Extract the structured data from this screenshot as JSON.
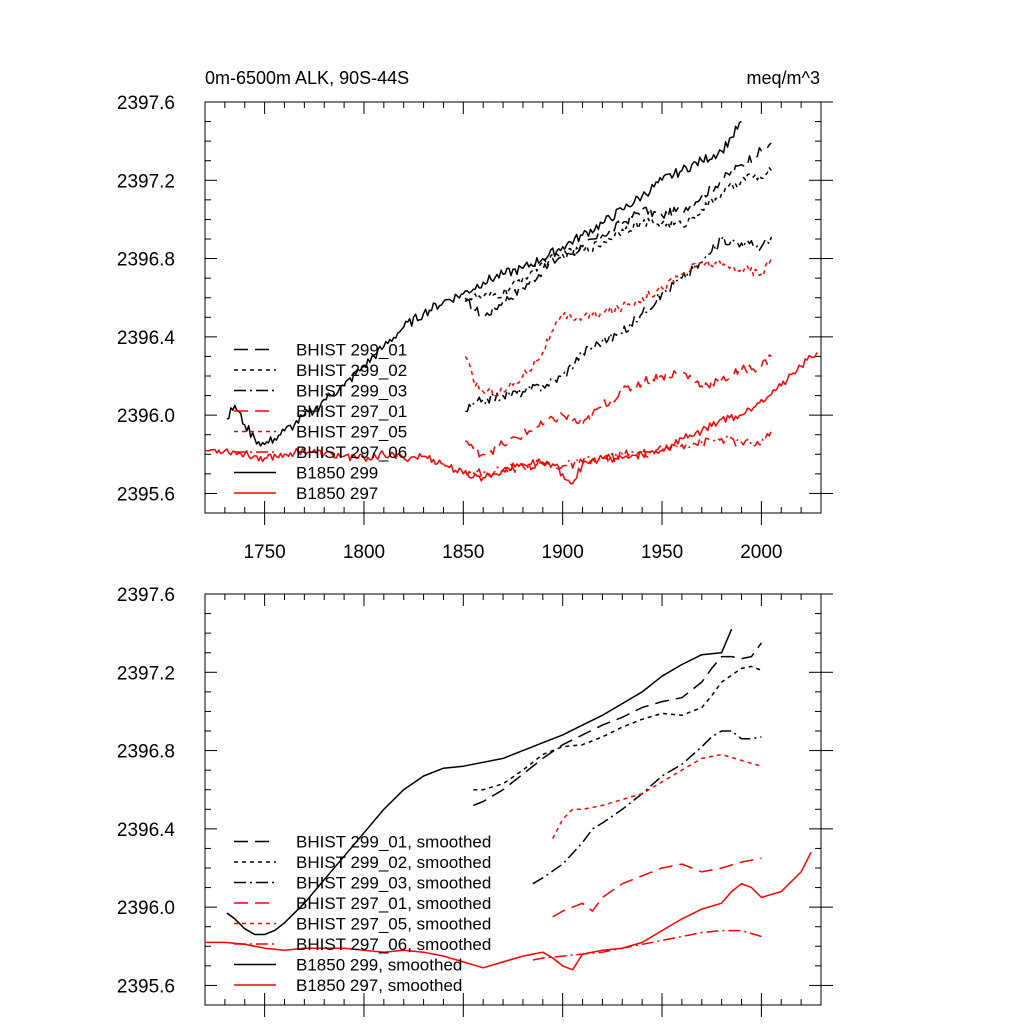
{
  "header": {
    "title": "0m-6500m ALK, 90S-44S",
    "units": "meq/m^3"
  },
  "colors": {
    "black": "#000000",
    "red": "#ff0000"
  },
  "chart_data": [
    {
      "type": "line",
      "title": "0m-6500m ALK, 90S-44S",
      "xlim": [
        1720,
        2030
      ],
      "ylim": [
        2395.5,
        2397.6
      ],
      "x_ticks": [
        1750,
        1800,
        1850,
        1900,
        1950,
        2000
      ],
      "x_tick_labels": [
        "1750",
        "1800",
        "1850",
        "1900",
        "1950",
        "2000"
      ],
      "y_ticks": [
        2395.6,
        2396.0,
        2396.4,
        2396.8,
        2397.2,
        2397.6
      ],
      "y_tick_labels": [
        "2395.6",
        "2396.0",
        "2396.4",
        "2396.8",
        "2397.2",
        "2397.6"
      ],
      "legend_position": "bottom-left",
      "series": [
        {
          "name": "BHIST 299_01",
          "color": "#000000",
          "dash": "longdash",
          "noise": 0.025,
          "x": [
            1851,
            1855,
            1860,
            1870,
            1880,
            1890,
            1900,
            1910,
            1920,
            1930,
            1940,
            1950,
            1960,
            1970,
            1980,
            1990,
            2000,
            2005
          ],
          "y": [
            2396.58,
            2396.55,
            2396.5,
            2396.58,
            2396.65,
            2396.74,
            2396.82,
            2396.86,
            2396.92,
            2396.98,
            2397.05,
            2397.02,
            2397.05,
            2397.12,
            2397.2,
            2397.28,
            2397.35,
            2397.39
          ]
        },
        {
          "name": "BHIST 299_02",
          "color": "#000000",
          "dash": "shortdash",
          "noise": 0.025,
          "x": [
            1851,
            1860,
            1870,
            1880,
            1890,
            1900,
            1910,
            1920,
            1930,
            1940,
            1950,
            1960,
            1970,
            1980,
            1990,
            1995,
            2000,
            2005
          ],
          "y": [
            2396.6,
            2396.6,
            2396.62,
            2396.7,
            2396.78,
            2396.82,
            2396.84,
            2396.88,
            2396.95,
            2396.98,
            2396.98,
            2396.97,
            2397.05,
            2397.13,
            2397.2,
            2397.22,
            2397.21,
            2397.25
          ]
        },
        {
          "name": "BHIST 299_03",
          "color": "#000000",
          "dash": "dashdot",
          "noise": 0.025,
          "x": [
            1851,
            1860,
            1870,
            1880,
            1890,
            1900,
            1910,
            1920,
            1930,
            1940,
            1950,
            1960,
            1970,
            1980,
            1990,
            2000,
            2005
          ],
          "y": [
            2396.02,
            2396.08,
            2396.1,
            2396.12,
            2396.15,
            2396.2,
            2396.32,
            2396.38,
            2396.42,
            2396.52,
            2396.62,
            2396.7,
            2396.78,
            2396.9,
            2396.88,
            2396.86,
            2396.91
          ]
        },
        {
          "name": "BHIST 297_01",
          "color": "#ff0000",
          "dash": "longdash",
          "noise": 0.025,
          "x": [
            1851,
            1855,
            1860,
            1870,
            1880,
            1890,
            1900,
            1910,
            1920,
            1930,
            1940,
            1950,
            1960,
            1970,
            1980,
            1990,
            2000,
            2005
          ],
          "y": [
            2395.87,
            2395.83,
            2395.8,
            2395.85,
            2395.9,
            2395.95,
            2396.0,
            2395.95,
            2396.05,
            2396.12,
            2396.17,
            2396.2,
            2396.22,
            2396.15,
            2396.18,
            2396.23,
            2396.25,
            2396.3
          ]
        },
        {
          "name": "BHIST 297_05",
          "color": "#ff0000",
          "dash": "shortdash",
          "noise": 0.025,
          "x": [
            1851,
            1855,
            1860,
            1870,
            1880,
            1890,
            1895,
            1900,
            1910,
            1920,
            1930,
            1940,
            1950,
            1960,
            1970,
            1980,
            1990,
            2000,
            2005
          ],
          "y": [
            2396.3,
            2396.18,
            2396.12,
            2396.12,
            2396.2,
            2396.32,
            2396.43,
            2396.5,
            2396.5,
            2396.52,
            2396.55,
            2396.6,
            2396.65,
            2396.72,
            2396.78,
            2396.76,
            2396.75,
            2396.72,
            2396.8
          ]
        },
        {
          "name": "BHIST 297_06",
          "color": "#ff0000",
          "dash": "dashdot",
          "noise": 0.025,
          "x": [
            1851,
            1860,
            1870,
            1880,
            1890,
            1900,
            1910,
            1920,
            1930,
            1940,
            1950,
            1960,
            1970,
            1980,
            1990,
            2000,
            2005
          ],
          "y": [
            2395.72,
            2395.7,
            2395.72,
            2395.74,
            2395.75,
            2395.74,
            2395.76,
            2395.77,
            2395.8,
            2395.8,
            2395.82,
            2395.85,
            2395.86,
            2395.88,
            2395.86,
            2395.85,
            2395.92
          ]
        },
        {
          "name": "B1850 299",
          "color": "#000000",
          "dash": "solid",
          "noise": 0.025,
          "x": [
            1731,
            1735,
            1740,
            1745,
            1750,
            1755,
            1760,
            1765,
            1770,
            1775,
            1780,
            1790,
            1800,
            1810,
            1820,
            1830,
            1840,
            1850,
            1860,
            1870,
            1880,
            1890,
            1900,
            1910,
            1920,
            1930,
            1940,
            1950,
            1960,
            1970,
            1980,
            1985,
            1990
          ],
          "y": [
            2395.98,
            2396.05,
            2395.95,
            2395.88,
            2395.85,
            2395.88,
            2395.92,
            2395.95,
            2396.0,
            2396.02,
            2396.08,
            2396.15,
            2396.25,
            2396.35,
            2396.45,
            2396.52,
            2396.58,
            2396.62,
            2396.68,
            2396.72,
            2396.75,
            2396.8,
            2396.86,
            2396.92,
            2396.98,
            2397.05,
            2397.12,
            2397.2,
            2397.25,
            2397.3,
            2397.35,
            2397.42,
            2397.5
          ]
        },
        {
          "name": "B1850 297",
          "color": "#ff0000",
          "dash": "solid",
          "noise": 0.02,
          "x": [
            1720,
            1730,
            1740,
            1750,
            1760,
            1770,
            1780,
            1790,
            1800,
            1810,
            1820,
            1830,
            1840,
            1850,
            1860,
            1870,
            1880,
            1890,
            1895,
            1900,
            1905,
            1910,
            1920,
            1930,
            1940,
            1950,
            1960,
            1970,
            1980,
            1990,
            2000,
            2010,
            2020,
            2028
          ],
          "y": [
            2395.82,
            2395.82,
            2395.8,
            2395.78,
            2395.8,
            2395.82,
            2395.8,
            2395.79,
            2395.78,
            2395.8,
            2395.78,
            2395.79,
            2395.75,
            2395.7,
            2395.68,
            2395.72,
            2395.75,
            2395.76,
            2395.75,
            2395.7,
            2395.65,
            2395.75,
            2395.78,
            2395.78,
            2395.8,
            2395.82,
            2395.88,
            2395.92,
            2395.98,
            2396.0,
            2396.08,
            2396.15,
            2396.25,
            2396.32
          ]
        }
      ]
    },
    {
      "type": "line",
      "title": "",
      "xlim": [
        1720,
        2030
      ],
      "ylim": [
        2395.5,
        2397.6
      ],
      "x_ticks": [
        1750,
        1800,
        1850,
        1900,
        1950,
        2000
      ],
      "x_tick_labels": [],
      "y_ticks": [
        2395.6,
        2396.0,
        2396.4,
        2396.8,
        2397.2,
        2397.6
      ],
      "y_tick_labels": [
        "2395.6",
        "2396.0",
        "2396.4",
        "2396.8",
        "2397.2",
        "2397.6"
      ],
      "legend_position": "bottom-left",
      "series": [
        {
          "name": "BHIST 299_01, smoothed",
          "color": "#000000",
          "dash": "longdash",
          "noise": 0,
          "x": [
            1855,
            1860,
            1870,
            1880,
            1890,
            1900,
            1910,
            1920,
            1930,
            1940,
            1950,
            1960,
            1970,
            1975,
            1980,
            1985,
            1990,
            1995,
            2000
          ],
          "y": [
            2396.52,
            2396.54,
            2396.6,
            2396.68,
            2396.76,
            2396.83,
            2396.88,
            2396.93,
            2396.97,
            2397.02,
            2397.05,
            2397.07,
            2397.15,
            2397.22,
            2397.28,
            2397.28,
            2397.27,
            2397.28,
            2397.35
          ]
        },
        {
          "name": "BHIST 299_02, smoothed",
          "color": "#000000",
          "dash": "shortdash",
          "noise": 0,
          "x": [
            1855,
            1860,
            1870,
            1880,
            1890,
            1900,
            1910,
            1920,
            1930,
            1940,
            1950,
            1960,
            1970,
            1975,
            1980,
            1990,
            1995,
            2000
          ],
          "y": [
            2396.6,
            2396.6,
            2396.63,
            2396.7,
            2396.78,
            2396.82,
            2396.83,
            2396.87,
            2396.92,
            2396.96,
            2396.99,
            2396.98,
            2397.02,
            2397.08,
            2397.15,
            2397.22,
            2397.23,
            2397.21
          ]
        },
        {
          "name": "BHIST 299_03, smoothed",
          "color": "#000000",
          "dash": "dashdot",
          "noise": 0,
          "x": [
            1885,
            1890,
            1900,
            1910,
            1915,
            1920,
            1930,
            1940,
            1950,
            1960,
            1970,
            1975,
            1980,
            1985,
            1990,
            1995,
            2000
          ],
          "y": [
            2396.12,
            2396.15,
            2396.22,
            2396.33,
            2396.4,
            2396.43,
            2396.5,
            2396.58,
            2396.67,
            2396.73,
            2396.82,
            2396.87,
            2396.9,
            2396.9,
            2396.86,
            2396.86,
            2396.87
          ]
        },
        {
          "name": "BHIST 297_01, smoothed",
          "color": "#ff0000",
          "dash": "longdash",
          "noise": 0,
          "x": [
            1895,
            1900,
            1910,
            1915,
            1920,
            1930,
            1940,
            1950,
            1960,
            1970,
            1980,
            1990,
            2000
          ],
          "y": [
            2395.95,
            2395.98,
            2396.02,
            2395.98,
            2396.05,
            2396.12,
            2396.16,
            2396.2,
            2396.22,
            2396.18,
            2396.2,
            2396.23,
            2396.25
          ]
        },
        {
          "name": "BHIST 297_05, smoothed",
          "color": "#ff0000",
          "dash": "shortdash",
          "noise": 0,
          "x": [
            1895,
            1900,
            1905,
            1910,
            1920,
            1930,
            1940,
            1950,
            1960,
            1970,
            1980,
            1990,
            2000
          ],
          "y": [
            2396.35,
            2396.45,
            2396.5,
            2396.5,
            2396.52,
            2396.55,
            2396.58,
            2396.64,
            2396.7,
            2396.76,
            2396.78,
            2396.75,
            2396.72
          ]
        },
        {
          "name": "BHIST 297_06, smoothed",
          "color": "#ff0000",
          "dash": "dashdot",
          "noise": 0,
          "x": [
            1885,
            1890,
            1900,
            1910,
            1920,
            1930,
            1940,
            1950,
            1960,
            1970,
            1980,
            1990,
            2000
          ],
          "y": [
            2395.73,
            2395.74,
            2395.75,
            2395.76,
            2395.77,
            2395.79,
            2395.81,
            2395.83,
            2395.85,
            2395.87,
            2395.88,
            2395.88,
            2395.85
          ]
        },
        {
          "name": "B1850 299, smoothed",
          "color": "#000000",
          "dash": "solid",
          "noise": 0,
          "x": [
            1731,
            1735,
            1740,
            1745,
            1750,
            1755,
            1760,
            1770,
            1780,
            1790,
            1800,
            1810,
            1820,
            1830,
            1840,
            1850,
            1860,
            1870,
            1880,
            1890,
            1900,
            1910,
            1920,
            1930,
            1940,
            1950,
            1960,
            1970,
            1980,
            1985
          ],
          "y": [
            2395.97,
            2395.94,
            2395.89,
            2395.86,
            2395.86,
            2395.88,
            2395.92,
            2396.02,
            2396.14,
            2396.26,
            2396.38,
            2396.5,
            2396.6,
            2396.67,
            2396.71,
            2396.72,
            2396.74,
            2396.76,
            2396.8,
            2396.84,
            2396.88,
            2396.93,
            2396.98,
            2397.04,
            2397.1,
            2397.18,
            2397.24,
            2397.29,
            2397.3,
            2397.42
          ]
        },
        {
          "name": "B1850 297, smoothed",
          "color": "#ff0000",
          "dash": "solid",
          "noise": 0,
          "x": [
            1720,
            1730,
            1740,
            1750,
            1760,
            1770,
            1780,
            1790,
            1800,
            1810,
            1820,
            1830,
            1840,
            1850,
            1860,
            1870,
            1880,
            1885,
            1890,
            1895,
            1900,
            1905,
            1910,
            1920,
            1930,
            1940,
            1950,
            1960,
            1970,
            1980,
            1985,
            1990,
            1995,
            2000,
            2010,
            2020,
            2025
          ],
          "y": [
            2395.82,
            2395.82,
            2395.81,
            2395.79,
            2395.78,
            2395.79,
            2395.79,
            2395.79,
            2395.78,
            2395.77,
            2395.78,
            2395.77,
            2395.75,
            2395.72,
            2395.69,
            2395.72,
            2395.75,
            2395.76,
            2395.77,
            2395.74,
            2395.7,
            2395.68,
            2395.76,
            2395.78,
            2395.79,
            2395.82,
            2395.88,
            2395.94,
            2395.99,
            2396.02,
            2396.08,
            2396.12,
            2396.1,
            2396.05,
            2396.08,
            2396.18,
            2396.28
          ]
        }
      ]
    }
  ]
}
